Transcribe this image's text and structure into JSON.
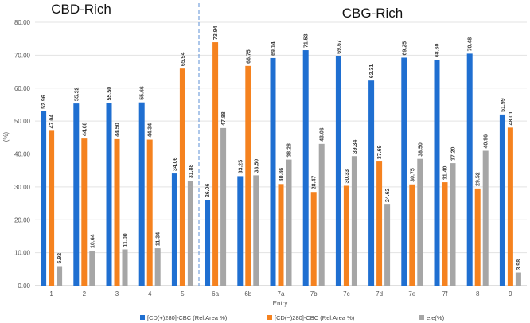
{
  "chart_data": {
    "type": "bar",
    "title": "",
    "xlabel": "Entry",
    "ylabel": "(%)",
    "ylim": [
      0,
      80
    ],
    "yticks": [
      "0.00",
      "10.00",
      "20.00",
      "30.00",
      "40.00",
      "50.00",
      "60.00",
      "70.00",
      "80.00"
    ],
    "grid": true,
    "legend_position": "bottom",
    "regions": [
      {
        "label": "CBD-Rich",
        "from_category": "1",
        "to_category": "5"
      },
      {
        "label": "CBG-Rich",
        "from_category": "6a",
        "to_category": "9"
      }
    ],
    "divider_after_category": "5",
    "categories": [
      "1",
      "2",
      "3",
      "4",
      "5",
      "6a",
      "6b",
      "7a",
      "7b",
      "7c",
      "7d",
      "7e",
      "7f",
      "8",
      "9"
    ],
    "series": [
      {
        "name": "[CD(+)280]-CBC (Rel.Area %)",
        "color": "#1f6fd1",
        "values": [
          52.96,
          55.32,
          55.5,
          55.66,
          34.06,
          26.06,
          33.25,
          69.14,
          71.53,
          69.67,
          62.31,
          69.25,
          68.6,
          70.48,
          51.99
        ],
        "labels": [
          "52.96",
          "55.32",
          "55.50",
          "55.66",
          "34.06",
          "26.06",
          "33.25",
          "69.14",
          "71.53",
          "69.67",
          "62.31",
          "69.25",
          "68.60",
          "70.48",
          "51.99"
        ]
      },
      {
        "name": "[CD(−)280]-CBC (Rel.Area %)",
        "color": "#f5821f",
        "values": [
          47.04,
          44.68,
          44.5,
          44.34,
          65.94,
          73.94,
          66.75,
          30.86,
          28.47,
          30.33,
          37.69,
          30.75,
          31.4,
          29.52,
          48.01
        ],
        "labels": [
          "47.04",
          "44.68",
          "44.50",
          "44.34",
          "65.94",
          "73.94",
          "66.75",
          "30.86",
          "28.47",
          "30.33",
          "37.69",
          "30.75",
          "31.40",
          "29.52",
          "48.01"
        ]
      },
      {
        "name": "e.e(%)",
        "color": "#a6a6a6",
        "values": [
          5.92,
          10.64,
          11.0,
          11.34,
          31.88,
          47.88,
          33.5,
          38.28,
          43.06,
          39.34,
          24.62,
          38.5,
          37.2,
          40.96,
          3.98
        ],
        "labels": [
          "5.92",
          "10.64",
          "11.00",
          "11.34",
          "31.88",
          "47.88",
          "33.50",
          "38.28",
          "43.06",
          "39.34",
          "24.62",
          "38.50",
          "37.20",
          "40.96",
          "3.98"
        ]
      }
    ]
  }
}
